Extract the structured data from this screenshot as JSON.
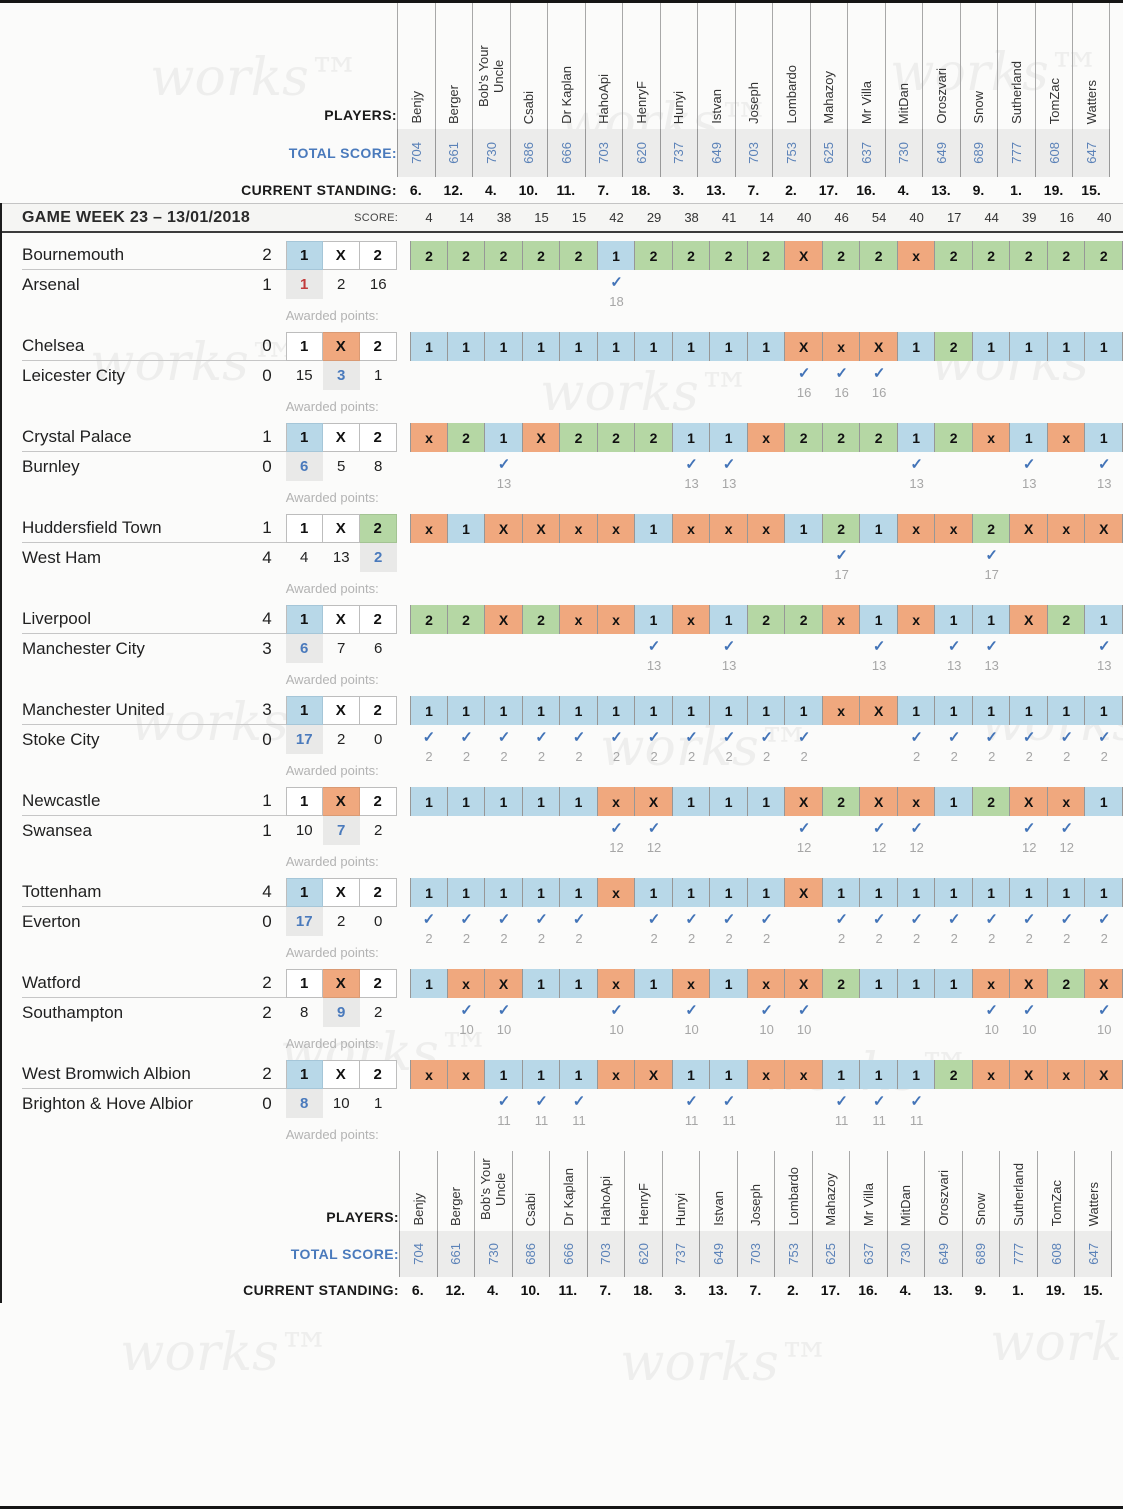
{
  "watermark": "works™",
  "labels": {
    "players": "PLAYERS:",
    "total_score": "TOTAL SCORE:",
    "current_standing": "CURRENT STANDING:",
    "score": "SCORE:",
    "gameweek_title": "GAME WEEK 23 – 13/01/2018",
    "awarded_points": "Awarded points:",
    "outcomes": [
      "1",
      "X",
      "2"
    ],
    "checkmark": "✓"
  },
  "colors": {
    "home_pick": "#b8d8e8",
    "draw_pick": "#f0a87e",
    "away_pick": "#b5d7a4",
    "highlight_text": "#4a7abc",
    "upset_text": "#c23b3b",
    "total_box_bg": "#ececeb"
  },
  "players": [
    {
      "name": "Benjy",
      "total": "704",
      "standing": "6.",
      "week_score": "4"
    },
    {
      "name": "Berger",
      "total": "661",
      "standing": "12.",
      "week_score": "14"
    },
    {
      "name": "Bob's Your Uncle",
      "total": "730",
      "standing": "4.",
      "week_score": "38"
    },
    {
      "name": "Csabi",
      "total": "686",
      "standing": "10.",
      "week_score": "15"
    },
    {
      "name": "Dr Kaplan",
      "total": "666",
      "standing": "11.",
      "week_score": "15"
    },
    {
      "name": "HahoApi",
      "total": "703",
      "standing": "7.",
      "week_score": "42"
    },
    {
      "name": "HenryF",
      "total": "620",
      "standing": "18.",
      "week_score": "29"
    },
    {
      "name": "Hunyi",
      "total": "737",
      "standing": "3.",
      "week_score": "38"
    },
    {
      "name": "Istvan",
      "total": "649",
      "standing": "13.",
      "week_score": "41"
    },
    {
      "name": "Joseph",
      "total": "703",
      "standing": "7.",
      "week_score": "14"
    },
    {
      "name": "Lombardo",
      "total": "753",
      "standing": "2.",
      "week_score": "40"
    },
    {
      "name": "Mahazoy",
      "total": "625",
      "standing": "17.",
      "week_score": "46"
    },
    {
      "name": "Mr Villa",
      "total": "637",
      "standing": "16.",
      "week_score": "54"
    },
    {
      "name": "MitDan",
      "total": "730",
      "standing": "4.",
      "week_score": "40"
    },
    {
      "name": "Oroszvari",
      "total": "649",
      "standing": "13.",
      "week_score": "17"
    },
    {
      "name": "Snow",
      "total": "689",
      "standing": "9.",
      "week_score": "44"
    },
    {
      "name": "Sutherland",
      "total": "777",
      "standing": "1.",
      "week_score": "39"
    },
    {
      "name": "TomZac",
      "total": "608",
      "standing": "19.",
      "week_score": "16"
    },
    {
      "name": "Watters",
      "total": "647",
      "standing": "15.",
      "week_score": "40"
    }
  ],
  "matches": [
    {
      "home": "Bournemouth",
      "home_score": "2",
      "away": "Arsenal",
      "away_score": "1",
      "result": "1",
      "counts": [
        "1",
        "2",
        "16"
      ],
      "count_style": "red",
      "predictions": [
        "2",
        "2",
        "2",
        "2",
        "2",
        "1",
        "2",
        "2",
        "2",
        "2",
        "X",
        "2",
        "2",
        "x",
        "2",
        "2",
        "2",
        "2",
        "2"
      ],
      "points": [
        "",
        "",
        "",
        "",
        "",
        "18",
        "",
        "",
        "",
        "",
        "",
        "",
        "",
        "",
        "",
        "",
        "",
        "",
        ""
      ]
    },
    {
      "home": "Chelsea",
      "home_score": "0",
      "away": "Leicester City",
      "away_score": "0",
      "result": "X",
      "counts": [
        "15",
        "3",
        "1"
      ],
      "count_style": "blue",
      "predictions": [
        "1",
        "1",
        "1",
        "1",
        "1",
        "1",
        "1",
        "1",
        "1",
        "1",
        "X",
        "x",
        "X",
        "1",
        "2",
        "1",
        "1",
        "1",
        "1"
      ],
      "points": [
        "",
        "",
        "",
        "",
        "",
        "",
        "",
        "",
        "",
        "",
        "16",
        "16",
        "16",
        "",
        "",
        "",
        "",
        "",
        ""
      ]
    },
    {
      "home": "Crystal Palace",
      "home_score": "1",
      "away": "Burnley",
      "away_score": "0",
      "result": "1",
      "counts": [
        "6",
        "5",
        "8"
      ],
      "count_style": "blue",
      "predictions": [
        "x",
        "2",
        "1",
        "X",
        "2",
        "2",
        "2",
        "1",
        "1",
        "x",
        "2",
        "2",
        "2",
        "1",
        "2",
        "x",
        "1",
        "x",
        "1"
      ],
      "points": [
        "",
        "",
        "13",
        "",
        "",
        "",
        "",
        "13",
        "13",
        "",
        "",
        "",
        "",
        "13",
        "",
        "",
        "13",
        "",
        "13"
      ]
    },
    {
      "home": "Huddersfield Town",
      "home_score": "1",
      "away": "West Ham",
      "away_score": "4",
      "result": "2",
      "counts": [
        "4",
        "13",
        "2"
      ],
      "count_style": "blue",
      "predictions": [
        "x",
        "1",
        "X",
        "X",
        "x",
        "x",
        "1",
        "x",
        "x",
        "x",
        "1",
        "2",
        "1",
        "x",
        "x",
        "2",
        "X",
        "x",
        "X"
      ],
      "points": [
        "",
        "",
        "",
        "",
        "",
        "",
        "",
        "",
        "",
        "",
        "",
        "17",
        "",
        "",
        "",
        "17",
        "",
        "",
        ""
      ]
    },
    {
      "home": "Liverpool",
      "home_score": "4",
      "away": "Manchester City",
      "away_score": "3",
      "result": "1",
      "counts": [
        "6",
        "7",
        "6"
      ],
      "count_style": "blue",
      "predictions": [
        "2",
        "2",
        "X",
        "2",
        "x",
        "x",
        "1",
        "x",
        "1",
        "2",
        "2",
        "x",
        "1",
        "x",
        "1",
        "1",
        "X",
        "2",
        "1"
      ],
      "points": [
        "",
        "",
        "",
        "",
        "",
        "",
        "13",
        "",
        "13",
        "",
        "",
        "",
        "13",
        "",
        "13",
        "13",
        "",
        "",
        "13"
      ]
    },
    {
      "home": "Manchester United",
      "home_score": "3",
      "away": "Stoke City",
      "away_score": "0",
      "result": "1",
      "counts": [
        "17",
        "2",
        "0"
      ],
      "count_style": "blue",
      "predictions": [
        "1",
        "1",
        "1",
        "1",
        "1",
        "1",
        "1",
        "1",
        "1",
        "1",
        "1",
        "x",
        "X",
        "1",
        "1",
        "1",
        "1",
        "1",
        "1"
      ],
      "points": [
        "2",
        "2",
        "2",
        "2",
        "2",
        "2",
        "2",
        "2",
        "2",
        "2",
        "2",
        "",
        "",
        "2",
        "2",
        "2",
        "2",
        "2",
        "2"
      ]
    },
    {
      "home": "Newcastle",
      "home_score": "1",
      "away": "Swansea",
      "away_score": "1",
      "result": "X",
      "counts": [
        "10",
        "7",
        "2"
      ],
      "count_style": "blue",
      "predictions": [
        "1",
        "1",
        "1",
        "1",
        "1",
        "x",
        "X",
        "1",
        "1",
        "1",
        "X",
        "2",
        "X",
        "x",
        "1",
        "2",
        "X",
        "x",
        "1"
      ],
      "points": [
        "",
        "",
        "",
        "",
        "",
        "12",
        "12",
        "",
        "",
        "",
        "12",
        "",
        "12",
        "12",
        "",
        "",
        "12",
        "12",
        ""
      ]
    },
    {
      "home": "Tottenham",
      "home_score": "4",
      "away": "Everton",
      "away_score": "0",
      "result": "1",
      "counts": [
        "17",
        "2",
        "0"
      ],
      "count_style": "blue",
      "predictions": [
        "1",
        "1",
        "1",
        "1",
        "1",
        "x",
        "1",
        "1",
        "1",
        "1",
        "X",
        "1",
        "1",
        "1",
        "1",
        "1",
        "1",
        "1",
        "1"
      ],
      "points": [
        "2",
        "2",
        "2",
        "2",
        "2",
        "",
        "2",
        "2",
        "2",
        "2",
        "",
        "2",
        "2",
        "2",
        "2",
        "2",
        "2",
        "2",
        "2"
      ]
    },
    {
      "home": "Watford",
      "home_score": "2",
      "away": "Southampton",
      "away_score": "2",
      "result": "X",
      "counts": [
        "8",
        "9",
        "2"
      ],
      "count_style": "blue",
      "predictions": [
        "1",
        "x",
        "X",
        "1",
        "1",
        "x",
        "1",
        "x",
        "1",
        "x",
        "X",
        "2",
        "1",
        "1",
        "1",
        "x",
        "X",
        "2",
        "X"
      ],
      "points": [
        "",
        "10",
        "10",
        "",
        "",
        "10",
        "",
        "10",
        "",
        "10",
        "10",
        "",
        "",
        "",
        "",
        "10",
        "10",
        "",
        "10"
      ]
    },
    {
      "home": "West Bromwich Albion",
      "home_score": "2",
      "away": "Brighton & Hove Albior",
      "away_score": "0",
      "result": "1",
      "counts": [
        "8",
        "10",
        "1"
      ],
      "count_style": "blue",
      "predictions": [
        "x",
        "x",
        "1",
        "1",
        "1",
        "x",
        "X",
        "1",
        "1",
        "x",
        "x",
        "1",
        "1",
        "1",
        "2",
        "x",
        "X",
        "x",
        "X"
      ],
      "points": [
        "",
        "",
        "11",
        "11",
        "11",
        "",
        "",
        "11",
        "11",
        "",
        "",
        "11",
        "11",
        "11",
        "",
        "",
        "",
        "",
        ""
      ]
    }
  ]
}
